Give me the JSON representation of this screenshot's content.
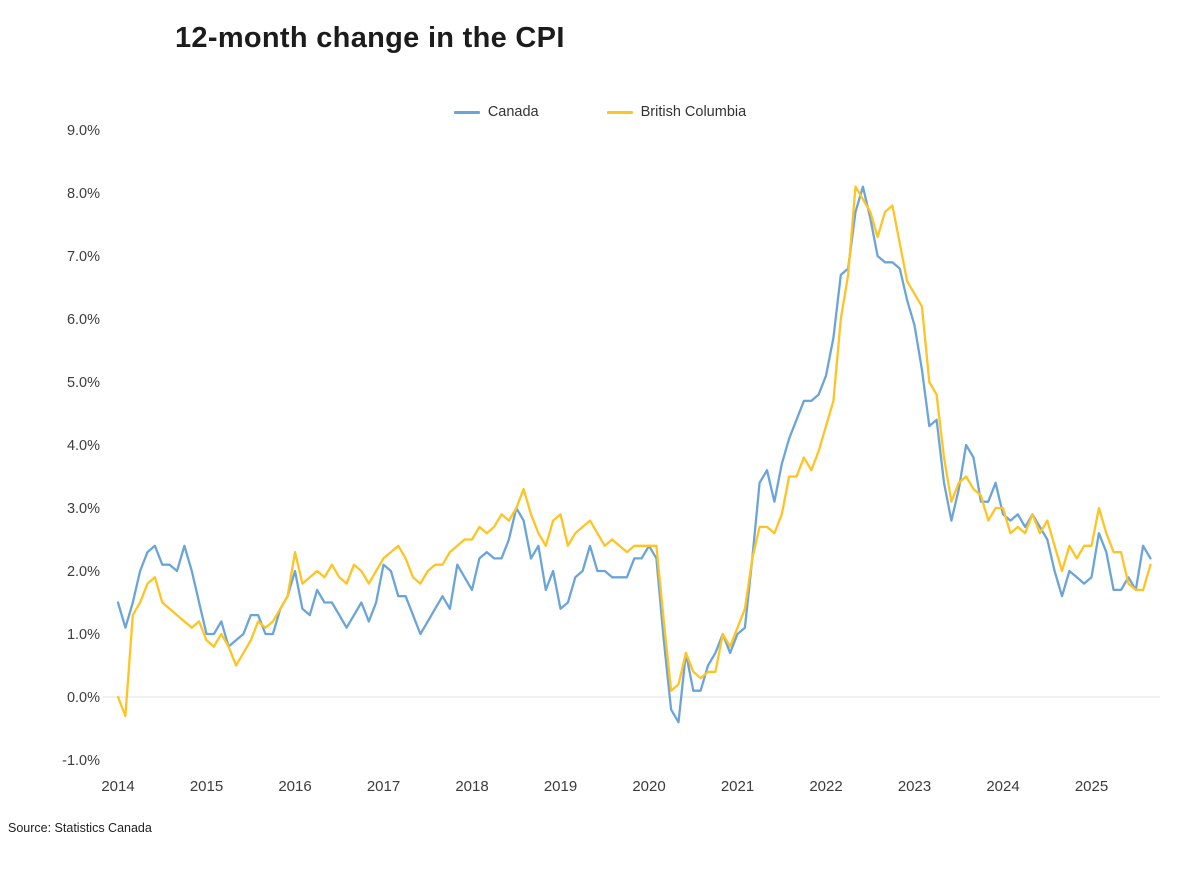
{
  "title": "12-month change in the CPI",
  "source": "Source: Statistics Canada",
  "legend": [
    {
      "label": "Canada",
      "color": "#6BA5D8"
    },
    {
      "label": "British Columbia",
      "color": "#FFC423"
    }
  ],
  "chart_data": {
    "type": "line",
    "title": "12-month change in the CPI",
    "x_start": "2014-01",
    "x_end": "2025-09",
    "x_frequency": "monthly",
    "x_tick_labels": [
      "2014",
      "2015",
      "2016",
      "2017",
      "2018",
      "2019",
      "2020",
      "2021",
      "2022",
      "2023",
      "2024",
      "2025"
    ],
    "y_ticks": [
      {
        "value": 9,
        "label": "9.0%"
      },
      {
        "value": 8,
        "label": "8.0%"
      },
      {
        "value": 7,
        "label": "7.0%"
      },
      {
        "value": 6,
        "label": "6.0%"
      },
      {
        "value": 5,
        "label": "5.0%"
      },
      {
        "value": 4,
        "label": "4.0%"
      },
      {
        "value": 3,
        "label": "3.0%"
      },
      {
        "value": 2,
        "label": "2.0%"
      },
      {
        "value": 1,
        "label": "1.0%"
      },
      {
        "value": 0,
        "label": "0.0%"
      },
      {
        "value": -1,
        "label": "-1.0%"
      }
    ],
    "ylim": [
      -1.0,
      9.0
    ],
    "grid": "zero-line-only",
    "legend_position": "top-center",
    "series": [
      {
        "name": "Canada",
        "color": "#6BA5D8",
        "values": [
          1.5,
          1.1,
          1.5,
          2.0,
          2.3,
          2.4,
          2.1,
          2.1,
          2.0,
          2.4,
          2.0,
          1.5,
          1.0,
          1.0,
          1.2,
          0.8,
          0.9,
          1.0,
          1.3,
          1.3,
          1.0,
          1.0,
          1.4,
          1.6,
          2.0,
          1.4,
          1.3,
          1.7,
          1.5,
          1.5,
          1.3,
          1.1,
          1.3,
          1.5,
          1.2,
          1.5,
          2.1,
          2.0,
          1.6,
          1.6,
          1.3,
          1.0,
          1.2,
          1.4,
          1.6,
          1.4,
          2.1,
          1.9,
          1.7,
          2.2,
          2.3,
          2.2,
          2.2,
          2.5,
          3.0,
          2.8,
          2.2,
          2.4,
          1.7,
          2.0,
          1.4,
          1.5,
          1.9,
          2.0,
          2.4,
          2.0,
          2.0,
          1.9,
          1.9,
          1.9,
          2.2,
          2.2,
          2.4,
          2.2,
          0.9,
          -0.2,
          -0.4,
          0.7,
          0.1,
          0.1,
          0.5,
          0.7,
          1.0,
          0.7,
          1.0,
          1.1,
          2.2,
          3.4,
          3.6,
          3.1,
          3.7,
          4.1,
          4.4,
          4.7,
          4.7,
          4.8,
          5.1,
          5.7,
          6.7,
          6.8,
          7.7,
          8.1,
          7.6,
          7.0,
          6.9,
          6.9,
          6.8,
          6.3,
          5.9,
          5.2,
          4.3,
          4.4,
          3.4,
          2.8,
          3.3,
          4.0,
          3.8,
          3.1,
          3.1,
          3.4,
          2.9,
          2.8,
          2.9,
          2.7,
          2.9,
          2.7,
          2.5,
          2.0,
          1.6,
          2.0,
          1.9,
          1.8,
          1.9,
          2.6,
          2.3,
          1.7,
          1.7,
          1.9,
          1.7,
          2.4,
          2.2
        ]
      },
      {
        "name": "British Columbia",
        "color": "#FFC423",
        "values": [
          0.0,
          -0.3,
          1.3,
          1.5,
          1.8,
          1.9,
          1.5,
          1.4,
          1.3,
          1.2,
          1.1,
          1.2,
          0.9,
          0.8,
          1.0,
          0.8,
          0.5,
          0.7,
          0.9,
          1.2,
          1.1,
          1.2,
          1.4,
          1.6,
          2.3,
          1.8,
          1.9,
          2.0,
          1.9,
          2.1,
          1.9,
          1.8,
          2.1,
          2.0,
          1.8,
          2.0,
          2.2,
          2.3,
          2.4,
          2.2,
          1.9,
          1.8,
          2.0,
          2.1,
          2.1,
          2.3,
          2.4,
          2.5,
          2.5,
          2.7,
          2.6,
          2.7,
          2.9,
          2.8,
          3.0,
          3.3,
          2.9,
          2.6,
          2.4,
          2.8,
          2.9,
          2.4,
          2.6,
          2.7,
          2.8,
          2.6,
          2.4,
          2.5,
          2.4,
          2.3,
          2.4,
          2.4,
          2.4,
          2.4,
          1.2,
          0.1,
          0.2,
          0.7,
          0.4,
          0.3,
          0.4,
          0.4,
          1.0,
          0.8,
          1.1,
          1.4,
          2.2,
          2.7,
          2.7,
          2.6,
          2.9,
          3.5,
          3.5,
          3.8,
          3.6,
          3.9,
          4.3,
          4.7,
          6.0,
          6.7,
          8.1,
          7.9,
          7.7,
          7.3,
          7.7,
          7.8,
          7.2,
          6.6,
          6.4,
          6.2,
          5.0,
          4.8,
          3.8,
          3.1,
          3.4,
          3.5,
          3.3,
          3.2,
          2.8,
          3.0,
          3.0,
          2.6,
          2.7,
          2.6,
          2.9,
          2.6,
          2.8,
          2.4,
          2.0,
          2.4,
          2.2,
          2.4,
          2.4,
          3.0,
          2.6,
          2.3,
          2.3,
          1.8,
          1.7,
          1.7,
          2.1
        ]
      }
    ]
  }
}
